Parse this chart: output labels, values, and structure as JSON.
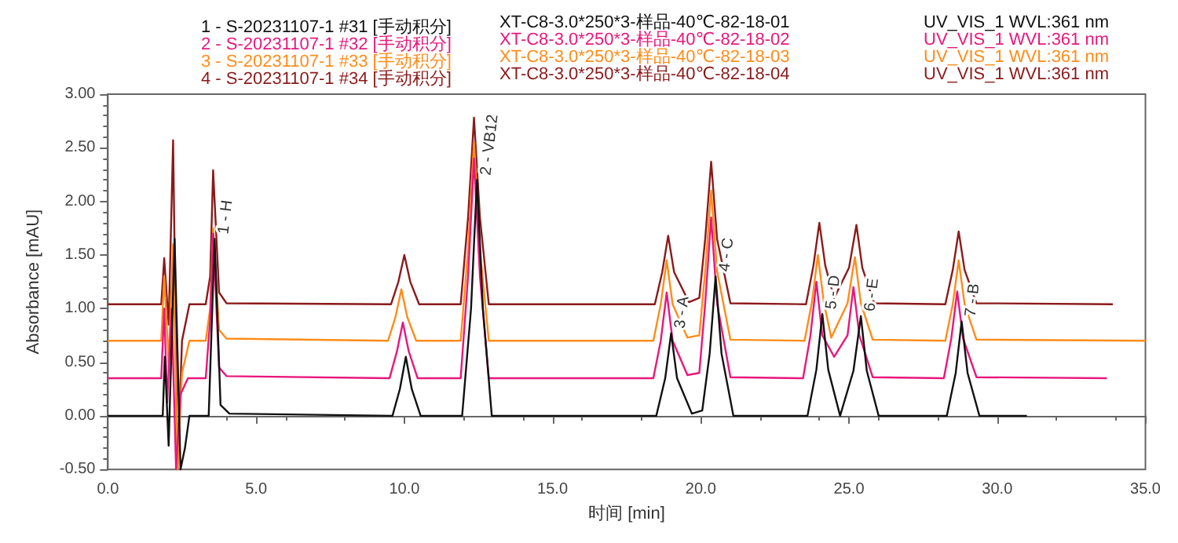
{
  "chart_data": {
    "type": "line",
    "xlabel": "时间 [min]",
    "ylabel": "Absorbance [mAU]",
    "legend": "top",
    "marker": "none",
    "line_style": "solid",
    "xlim": [
      0,
      35
    ],
    "ylim": [
      -0.5,
      3
    ],
    "xticks": [
      {
        "value": 0,
        "label": "0.0"
      },
      {
        "value": 5,
        "label": "5.0"
      },
      {
        "value": 10,
        "label": "10.0"
      },
      {
        "value": 15,
        "label": "15.0"
      },
      {
        "value": 20,
        "label": "20.0"
      },
      {
        "value": 25,
        "label": "25.0"
      },
      {
        "value": 30,
        "label": "30.0"
      },
      {
        "value": 35,
        "label": "35.0"
      }
    ],
    "yticks": [
      {
        "value": -0.5,
        "label": "-0.50"
      },
      {
        "value": 0,
        "label": "0.00"
      },
      {
        "value": 0.5,
        "label": "0.50"
      },
      {
        "value": 1,
        "label": "1.00"
      },
      {
        "value": 1.5,
        "label": "1.50"
      },
      {
        "value": 2,
        "label": "2.00"
      },
      {
        "value": 2.5,
        "label": "2.50"
      },
      {
        "value": 3,
        "label": "3.00"
      }
    ],
    "series": [
      {
        "name": "1 - S-20231107-1 #31 [手动积分]",
        "color": "#111111",
        "x": [
          0,
          1.85,
          1.92,
          2.05,
          2.25,
          2.45,
          2.6,
          2.75,
          3.4,
          3.6,
          3.8,
          4.1,
          9.6,
          9.85,
          10.05,
          10.25,
          10.55,
          11.95,
          12.25,
          12.45,
          12.65,
          12.95,
          18.5,
          18.8,
          19.0,
          19.2,
          19.7,
          20.05,
          20.3,
          20.5,
          20.7,
          21.1,
          23.6,
          23.9,
          24.1,
          24.3,
          24.7,
          25.15,
          25.4,
          25.6,
          26.0,
          28.3,
          28.6,
          28.8,
          29.0,
          29.4,
          31.0
        ],
        "values": [
          0,
          0,
          0.55,
          -0.28,
          1.65,
          -0.5,
          -0.3,
          0,
          0,
          1.65,
          0.1,
          0.02,
          0,
          0.25,
          0.55,
          0.25,
          0,
          0,
          1.0,
          2.2,
          1.0,
          0,
          0,
          0.35,
          0.77,
          0.35,
          0.02,
          0.05,
          0.58,
          1.3,
          0.58,
          0,
          0,
          0.43,
          0.95,
          0.43,
          0,
          0.42,
          0.93,
          0.42,
          0,
          0,
          0.4,
          0.88,
          0.4,
          0,
          0
        ]
      },
      {
        "name": "2 - S-20231107-1 #32 [手动积分]",
        "color": "#e8177d",
        "x": [
          0,
          1.8,
          1.9,
          2.0,
          2.15,
          2.3,
          2.45,
          2.7,
          3.3,
          3.45,
          3.55,
          3.75,
          4.0,
          9.5,
          9.75,
          9.95,
          10.15,
          10.45,
          11.9,
          12.15,
          12.35,
          12.55,
          12.85,
          18.4,
          18.65,
          18.85,
          19.05,
          19.55,
          19.95,
          20.15,
          20.35,
          20.55,
          21.0,
          23.45,
          23.7,
          23.9,
          24.1,
          24.5,
          24.95,
          25.15,
          25.35,
          25.8,
          28.2,
          28.45,
          28.65,
          28.85,
          29.3,
          33.7
        ],
        "values": [
          0.35,
          0.35,
          1.0,
          0.12,
          1.0,
          -0.5,
          0.2,
          0.35,
          0.35,
          0.9,
          1.7,
          0.45,
          0.37,
          0.35,
          0.6,
          0.87,
          0.6,
          0.35,
          0.35,
          1.3,
          2.4,
          1.3,
          0.35,
          0.35,
          0.7,
          1.15,
          0.7,
          0.38,
          0.4,
          1.05,
          1.85,
          1.05,
          0.36,
          0.35,
          0.75,
          1.25,
          0.75,
          0.55,
          0.75,
          1.2,
          0.75,
          0.36,
          0.35,
          0.72,
          1.16,
          0.72,
          0.36,
          0.35
        ]
      },
      {
        "name": "3 - S-20231107-1 #33 [手动积分]",
        "color": "#ff8c1a",
        "x": [
          0,
          1.8,
          1.9,
          2.05,
          2.2,
          2.35,
          2.5,
          2.75,
          3.3,
          3.45,
          3.55,
          3.75,
          4.0,
          9.45,
          9.7,
          9.9,
          10.1,
          10.4,
          11.9,
          12.15,
          12.35,
          12.55,
          12.85,
          18.4,
          18.65,
          18.85,
          19.05,
          19.55,
          19.95,
          20.15,
          20.35,
          20.55,
          21.0,
          23.5,
          23.75,
          23.95,
          24.15,
          24.4,
          24.95,
          25.2,
          25.4,
          25.8,
          28.25,
          28.5,
          28.7,
          28.9,
          29.3,
          35.0
        ],
        "values": [
          0.7,
          0.7,
          1.3,
          0.5,
          1.6,
          -0.5,
          0.4,
          0.7,
          0.7,
          1.0,
          1.75,
          0.8,
          0.72,
          0.7,
          0.92,
          1.18,
          0.92,
          0.7,
          0.7,
          1.55,
          2.55,
          1.55,
          0.7,
          0.7,
          1.04,
          1.45,
          1.04,
          0.73,
          0.75,
          1.35,
          2.1,
          1.35,
          0.71,
          0.7,
          1.06,
          1.5,
          1.06,
          0.73,
          1.05,
          1.48,
          1.05,
          0.71,
          0.7,
          1.04,
          1.45,
          1.04,
          0.71,
          0.7
        ]
      },
      {
        "name": "4 - S-20231107-1 #34 [手动积分]",
        "color": "#8b1a1a",
        "x": [
          0,
          1.8,
          1.9,
          2.05,
          2.2,
          2.35,
          2.5,
          2.75,
          3.3,
          3.45,
          3.55,
          3.75,
          4.0,
          9.55,
          9.8,
          10.0,
          10.2,
          10.5,
          11.9,
          12.15,
          12.35,
          12.55,
          12.85,
          18.45,
          18.7,
          18.9,
          19.1,
          19.6,
          19.95,
          20.15,
          20.35,
          20.55,
          21.0,
          23.55,
          23.8,
          24.0,
          24.2,
          24.5,
          25.0,
          25.25,
          25.45,
          25.85,
          28.25,
          28.5,
          28.7,
          28.9,
          29.3,
          33.9
        ],
        "values": [
          1.04,
          1.04,
          1.47,
          0.85,
          2.57,
          -0.5,
          0.7,
          1.04,
          1.04,
          1.3,
          2.29,
          1.15,
          1.05,
          1.04,
          1.25,
          1.5,
          1.25,
          1.04,
          1.04,
          1.85,
          2.78,
          1.85,
          1.04,
          1.04,
          1.34,
          1.68,
          1.34,
          1.06,
          1.1,
          1.65,
          2.37,
          1.65,
          1.05,
          1.04,
          1.4,
          1.8,
          1.4,
          1.1,
          1.38,
          1.78,
          1.38,
          1.05,
          1.04,
          1.36,
          1.72,
          1.36,
          1.05,
          1.04
        ]
      }
    ],
    "annotations": [
      "XT-C8-3.0*250*3-样品-40℃-82-18-01",
      "XT-C8-3.0*250*3-样品-40℃-82-18-02",
      "XT-C8-3.0*250*3-样品-40℃-82-18-03",
      "XT-C8-3.0*250*3-样品-40℃-82-18-04",
      "UV_VIS_1 WVL:361 nm",
      "UV_VIS_1 WVL:361 nm",
      "UV_VIS_1 WVL:361 nm",
      "UV_VIS_1 WVL:361 nm",
      {
        "text": "1 - H",
        "x": 3.6,
        "y": 1.65
      },
      {
        "text": "2 - VB12",
        "x": 12.45,
        "y": 2.2
      },
      {
        "text": "3 - A",
        "x": 19.0,
        "y": 0.77
      },
      {
        "text": "4 - C",
        "x": 20.5,
        "y": 1.3
      },
      {
        "text": "5 - D",
        "x": 24.1,
        "y": 0.95
      },
      {
        "text": "6 - E",
        "x": 25.4,
        "y": 0.93
      },
      {
        "text": "7 - B",
        "x": 28.8,
        "y": 0.88
      }
    ]
  }
}
